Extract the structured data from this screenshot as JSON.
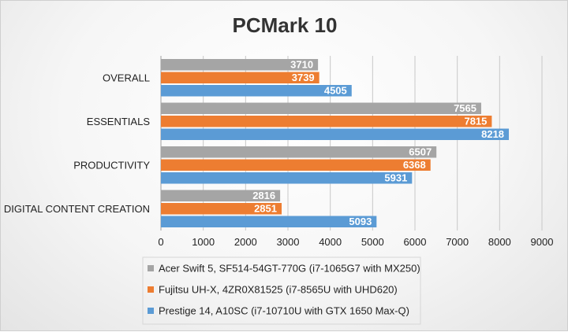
{
  "chart_data": {
    "type": "bar",
    "orientation": "horizontal",
    "title": "PCMark 10",
    "categories": [
      "OVERALL",
      "ESSENTIALS",
      "PRODUCTIVITY",
      "DIGITAL CONTENT CREATION"
    ],
    "series": [
      {
        "name": "Acer Swift 5, SF514-54GT-770G (i7-1065G7 with MX250)",
        "color": "#a5a5a5",
        "values": [
          3710,
          7565,
          6507,
          2816
        ]
      },
      {
        "name": "Fujitsu UH-X, 4ZR0X81525 (i7-8565U with UHD620)",
        "color": "#ed7d31",
        "values": [
          3739,
          7815,
          6368,
          2851
        ]
      },
      {
        "name": "Prestige 14, A10SC (i7-10710U with GTX 1650 Max-Q)",
        "color": "#5b9bd5",
        "values": [
          4505,
          8218,
          5931,
          5093
        ]
      }
    ],
    "xlim": [
      0,
      9000
    ],
    "xticks": [
      "0",
      "1000",
      "2000",
      "3000",
      "4000",
      "5000",
      "6000",
      "7000",
      "8000",
      "9000"
    ],
    "grid": true,
    "legend": "bottom"
  }
}
